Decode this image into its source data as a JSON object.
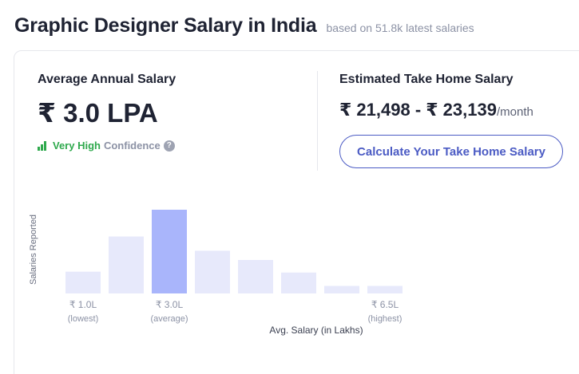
{
  "header": {
    "title": "Graphic Designer Salary in India",
    "subtitle": "based on 51.8k latest salaries"
  },
  "average": {
    "label": "Average Annual Salary",
    "value": "₹ 3.0 LPA",
    "confidence_level": "Very High",
    "confidence_word": "Confidence",
    "help_icon": "?"
  },
  "take_home": {
    "label": "Estimated Take Home Salary",
    "range": "₹ 21,498 - ₹ 23,139",
    "unit": "/month",
    "button_label": "Calculate Your Take Home Salary"
  },
  "colors": {
    "bar": "#e7e9fb",
    "bar_highlight": "#a9b5fb",
    "confidence_green": "#2fa94d",
    "button_blue": "#4b5bc4"
  },
  "chart_data": {
    "type": "bar",
    "ylabel": "Salaries Reported",
    "xlabel": "Avg. Salary (in Lakhs)",
    "values": [
      26,
      68,
      100,
      51,
      40,
      25,
      9,
      9
    ],
    "highlight_index": 2,
    "tick_labels": [
      {
        "index": 0,
        "value": "₹ 1.0L",
        "note": "(lowest)"
      },
      {
        "index": 2,
        "value": "₹ 3.0L",
        "note": "(average)"
      },
      {
        "index": 7,
        "value": "₹ 6.5L",
        "note": "(highest)"
      }
    ]
  }
}
